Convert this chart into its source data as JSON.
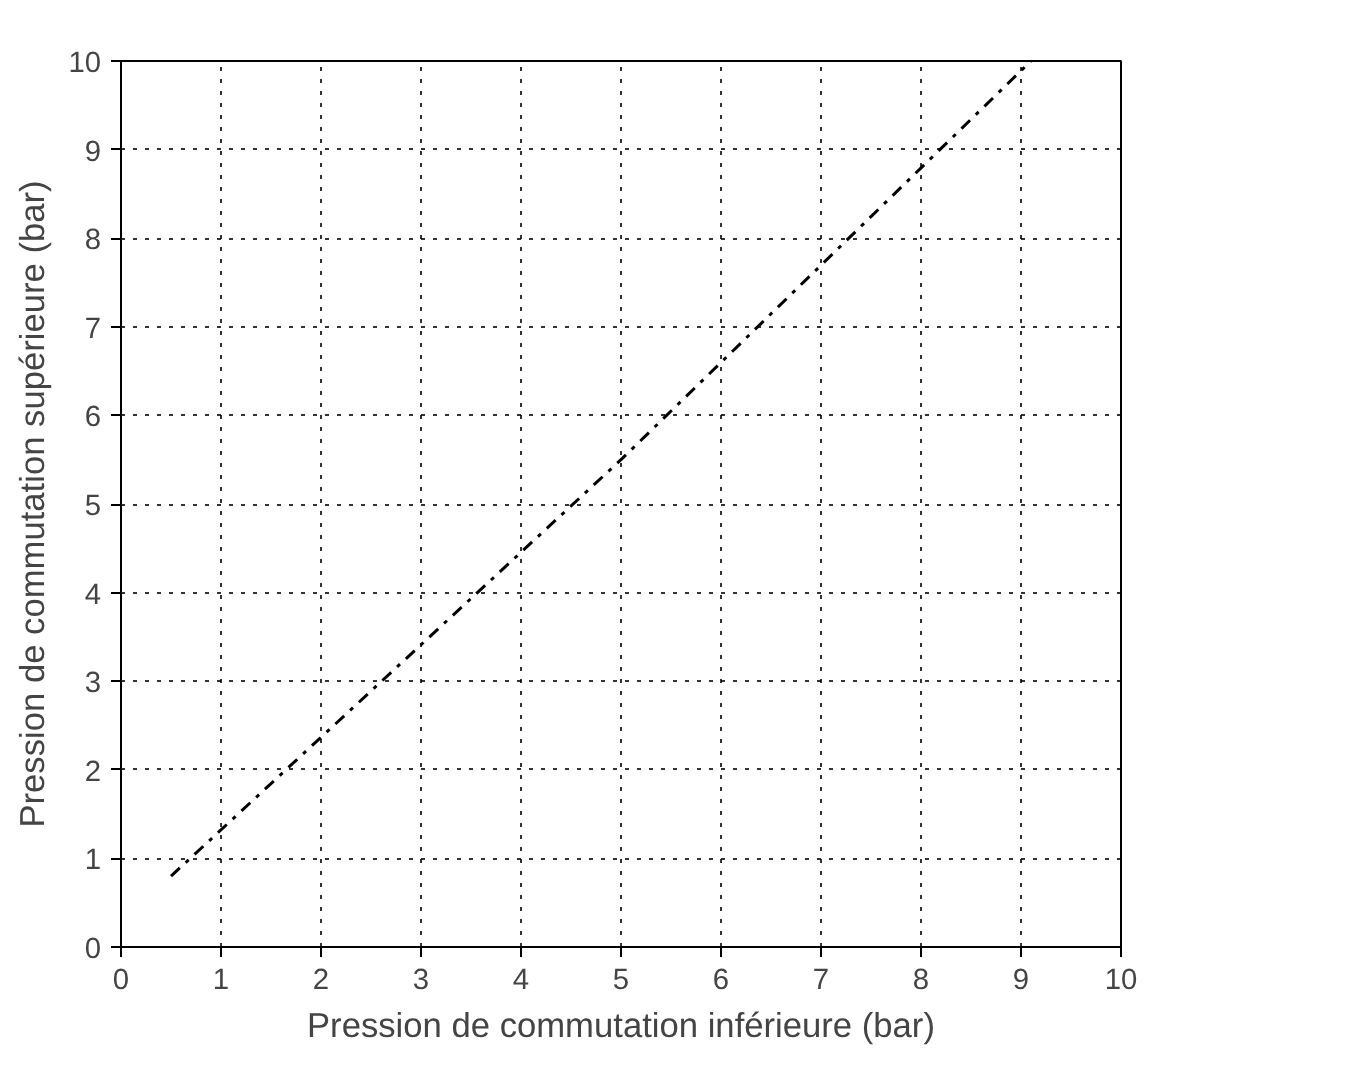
{
  "chart_data": {
    "type": "line",
    "xlabel": "Pression de commutation inférieure (bar)",
    "ylabel": "Pression de commutation supérieure (bar)",
    "x": [
      0.5,
      5,
      9.1
    ],
    "series": [
      {
        "color": "#000000",
        "values": [
          0.8,
          5.5,
          10
        ]
      }
    ],
    "xlim": [
      0,
      10
    ],
    "ylim": [
      0,
      10
    ],
    "xticks": [
      0,
      1,
      2,
      3,
      4,
      5,
      6,
      7,
      8,
      9,
      10
    ],
    "yticks": [
      0,
      1,
      2,
      3,
      4,
      5,
      6,
      7,
      8,
      9,
      10
    ],
    "grid": true,
    "line_style": "dashdot",
    "marker": "none"
  }
}
